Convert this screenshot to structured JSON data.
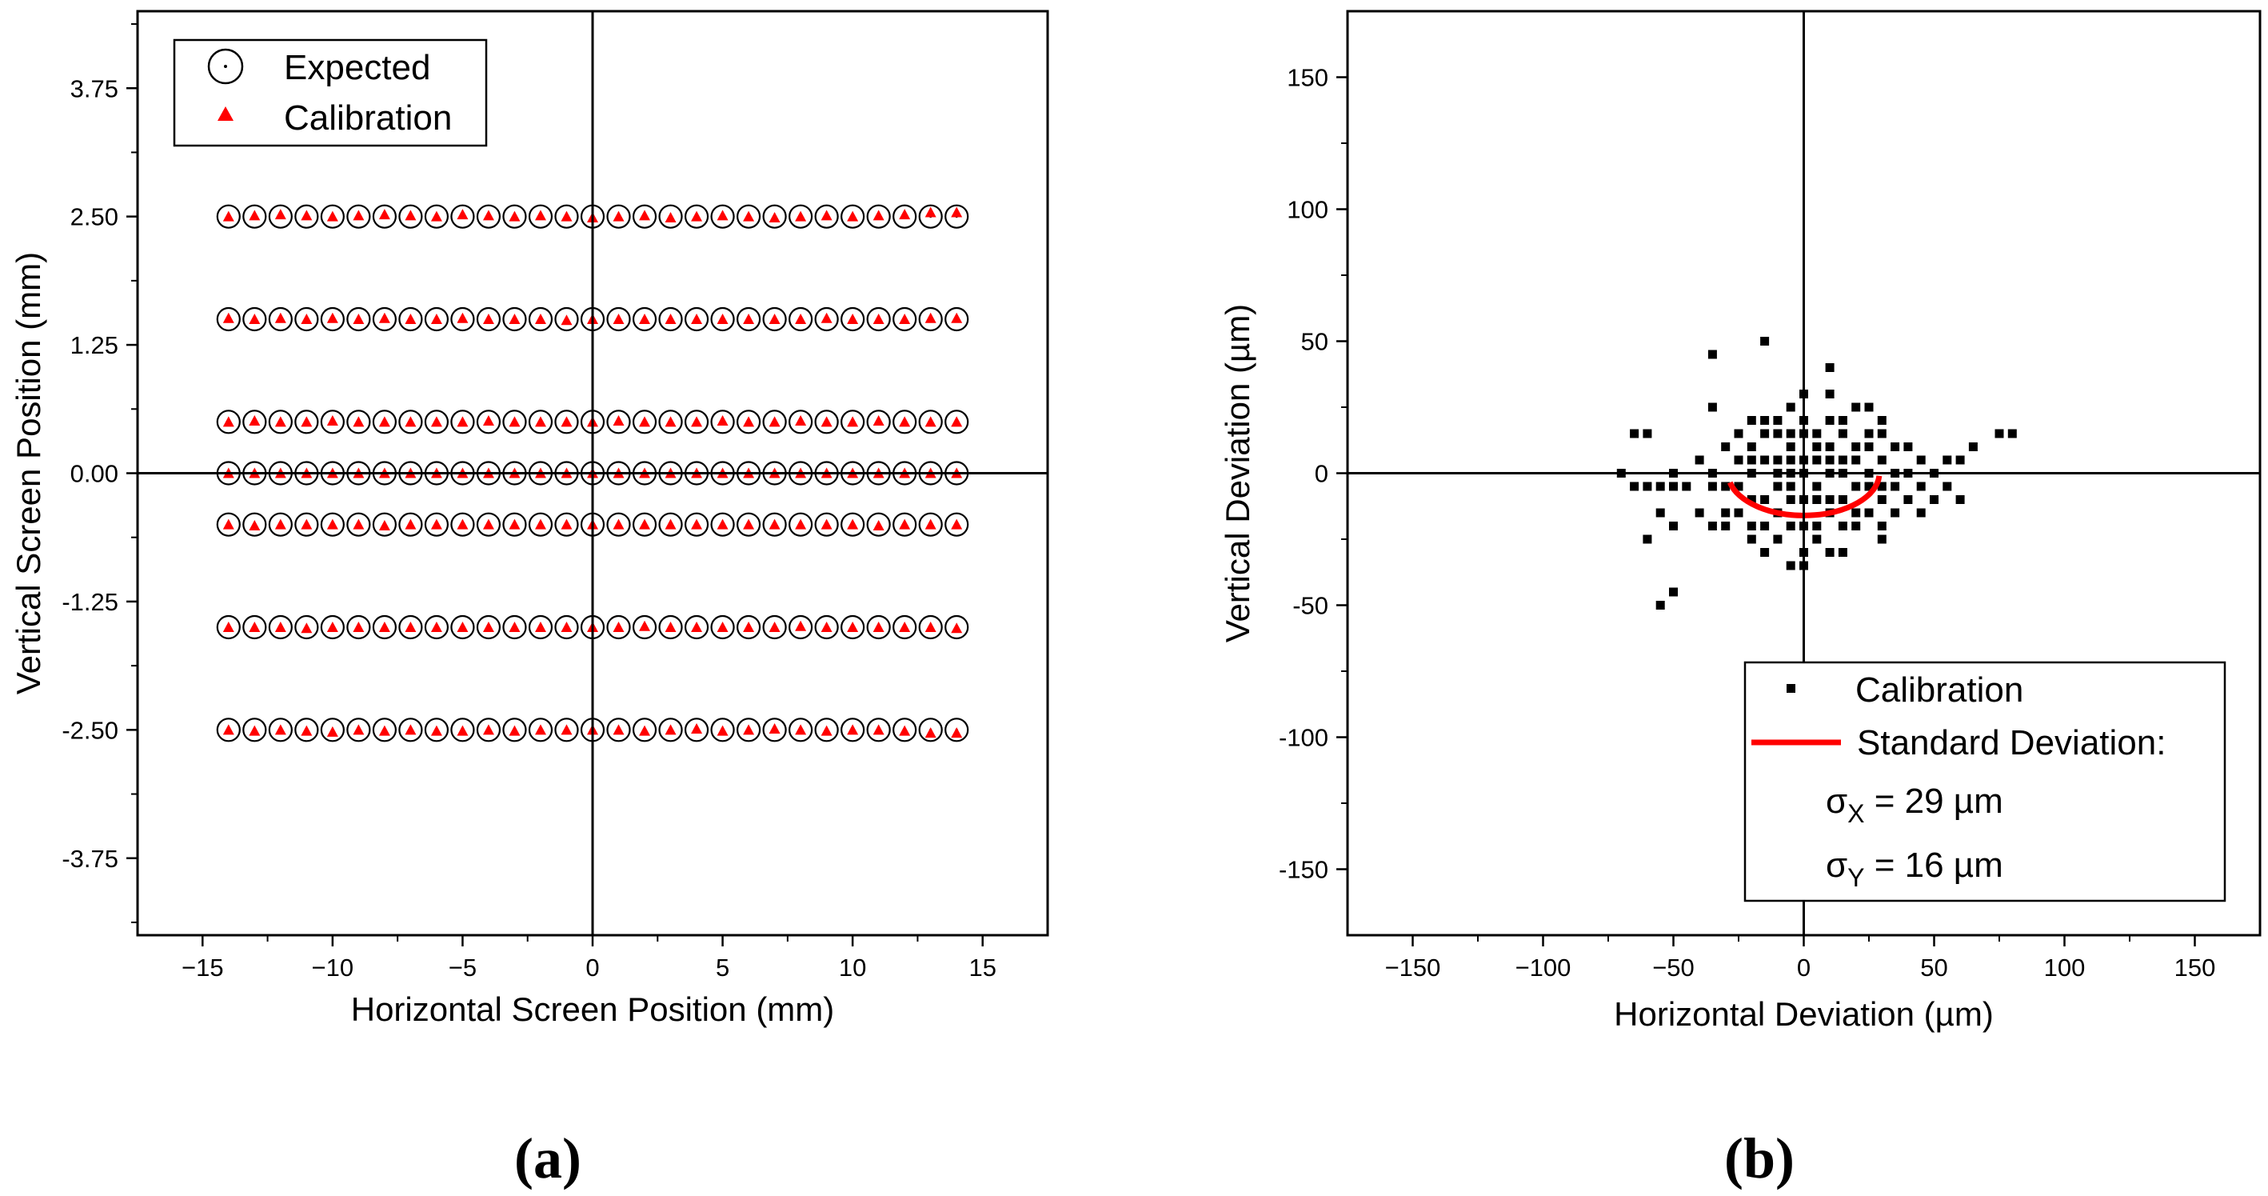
{
  "panel_labels": {
    "a": "a",
    "b": "b"
  },
  "chart_data": [
    {
      "type": "scatter",
      "panel": "a",
      "xlabel": "Horizontal Screen Position (mm)",
      "ylabel": "Vertical Screen Position (mm)",
      "xlim": [
        -17.5,
        17.5
      ],
      "ylim": [
        -4.5,
        4.5
      ],
      "xticks": [
        -15,
        -10,
        -5,
        0,
        5,
        10,
        15
      ],
      "xtick_labels": [
        "−15",
        "−10",
        "−5",
        "0",
        "5",
        "10",
        "15"
      ],
      "yticks": [
        3.75,
        2.5,
        1.25,
        0,
        -1.25,
        -2.5,
        -3.75
      ],
      "ytick_labels": [
        "3.75",
        "2.50",
        "1.25",
        "0.00",
        "-1.25",
        "-2.50",
        "-3.75"
      ],
      "grid": false,
      "legend_position": "top-left",
      "x_positions": [
        -14,
        -13,
        -12,
        -11,
        -10,
        -9,
        -8,
        -7,
        -6,
        -5,
        -4,
        -3,
        -2,
        -1,
        0,
        1,
        2,
        3,
        4,
        5,
        6,
        7,
        8,
        9,
        10,
        11,
        12,
        13,
        14
      ],
      "row_y": [
        2.5,
        1.5,
        0.5,
        0,
        -0.5,
        -1.5,
        -2.5
      ],
      "series": [
        {
          "name": "Expected",
          "marker": "open-circle-with-dot",
          "color": "#000000"
        },
        {
          "name": "Calibration",
          "marker": "triangle",
          "color": "#ff0000"
        }
      ],
      "calibration_offsets": [
        [
          0.0,
          0.01,
          0.02,
          0.01,
          0.0,
          0.01,
          0.02,
          0.01,
          0.0,
          0.02,
          0.01,
          0.0,
          0.01,
          0.0,
          -0.01,
          0.0,
          0.01,
          -0.01,
          0.0,
          0.01,
          0.0,
          -0.01,
          0.0,
          0.01,
          0.0,
          0.01,
          0.02,
          0.04,
          0.04
        ],
        [
          0.01,
          0.0,
          0.01,
          0.0,
          0.01,
          0.0,
          0.01,
          0.0,
          0.0,
          0.01,
          0.0,
          0.0,
          0.0,
          -0.01,
          0.0,
          0.0,
          0.0,
          0.0,
          0.0,
          0.0,
          0.0,
          0.0,
          0.0,
          0.01,
          0.0,
          0.0,
          0.0,
          0.01,
          0.01
        ],
        [
          0.0,
          0.01,
          0.0,
          0.0,
          0.01,
          0.0,
          0.0,
          0.0,
          0.0,
          0.0,
          0.01,
          0.0,
          0.0,
          0.0,
          0.0,
          0.01,
          0.0,
          0.0,
          0.0,
          0.01,
          0.0,
          0.0,
          0.01,
          0.0,
          0.0,
          0.01,
          0.0,
          0.0,
          0.0
        ],
        [
          0.0,
          0.0,
          0.0,
          0.0,
          0.0,
          0.0,
          0.0,
          0.0,
          0.0,
          0.0,
          0.0,
          0.0,
          0.0,
          0.0,
          0.0,
          0.0,
          0.0,
          0.0,
          0.0,
          0.0,
          0.0,
          0.0,
          0.0,
          0.0,
          0.0,
          0.0,
          0.0,
          0.0,
          0.0
        ],
        [
          0.0,
          -0.01,
          0.0,
          0.0,
          0.0,
          0.0,
          -0.01,
          0.0,
          0.0,
          0.0,
          0.0,
          0.0,
          0.0,
          0.0,
          0.0,
          0.0,
          0.0,
          0.0,
          0.0,
          0.0,
          0.0,
          0.0,
          0.0,
          0.0,
          0.0,
          -0.01,
          0.0,
          0.0,
          0.0
        ],
        [
          0.0,
          0.0,
          0.0,
          -0.01,
          0.0,
          0.0,
          0.0,
          0.0,
          0.0,
          0.0,
          0.0,
          0.0,
          0.0,
          0.0,
          0.0,
          0.0,
          0.01,
          0.0,
          0.0,
          0.0,
          0.0,
          0.0,
          0.01,
          0.0,
          0.0,
          0.0,
          0.0,
          0.0,
          -0.01
        ],
        [
          0.0,
          -0.01,
          0.0,
          -0.01,
          -0.02,
          0.0,
          -0.01,
          0.0,
          -0.01,
          -0.01,
          0.0,
          -0.01,
          0.0,
          0.0,
          0.0,
          0.0,
          -0.01,
          0.0,
          0.01,
          -0.01,
          0.0,
          0.01,
          0.0,
          -0.01,
          0.0,
          0.0,
          -0.01,
          -0.03,
          -0.03
        ]
      ]
    },
    {
      "type": "scatter",
      "panel": "b",
      "xlabel": "Horizontal Deviation (µm)",
      "ylabel": "Vertical Deviation (µm)",
      "xlim": [
        -175,
        175
      ],
      "ylim": [
        -175,
        175
      ],
      "xticks": [
        -150,
        -100,
        -50,
        0,
        50,
        100,
        150
      ],
      "xtick_labels": [
        "−150",
        "−100",
        "−50",
        "0",
        "50",
        "100",
        "150"
      ],
      "yticks": [
        150,
        100,
        50,
        0,
        -50,
        -100,
        -150
      ],
      "ytick_labels": [
        "150",
        "100",
        "50",
        "0",
        "-50",
        "-100",
        "-150"
      ],
      "grid": false,
      "legend_position": "bottom-right",
      "series": [
        {
          "name": "Calibration",
          "marker": "square",
          "color": "#000000",
          "points": [
            [
              -70,
              0
            ],
            [
              -65,
              15
            ],
            [
              -60,
              15
            ],
            [
              -65,
              -5
            ],
            [
              -60,
              -5
            ],
            [
              -55,
              -5
            ],
            [
              -50,
              -5
            ],
            [
              -50,
              0
            ],
            [
              -45,
              -5
            ],
            [
              -55,
              -15
            ],
            [
              -60,
              -25
            ],
            [
              -50,
              -20
            ],
            [
              -55,
              -50
            ],
            [
              -50,
              -45
            ],
            [
              -40,
              5
            ],
            [
              -35,
              0
            ],
            [
              -35,
              25
            ],
            [
              -35,
              45
            ],
            [
              -35,
              -5
            ],
            [
              -35,
              -20
            ],
            [
              -30,
              10
            ],
            [
              -30,
              -5
            ],
            [
              -30,
              -15
            ],
            [
              -30,
              -20
            ],
            [
              -40,
              -15
            ],
            [
              -25,
              15
            ],
            [
              -25,
              5
            ],
            [
              -25,
              -5
            ],
            [
              -25,
              -15
            ],
            [
              -20,
              20
            ],
            [
              -20,
              10
            ],
            [
              -20,
              5
            ],
            [
              -20,
              0
            ],
            [
              -20,
              -10
            ],
            [
              -20,
              -20
            ],
            [
              -20,
              -25
            ],
            [
              -15,
              50
            ],
            [
              -15,
              20
            ],
            [
              -15,
              15
            ],
            [
              -15,
              5
            ],
            [
              -15,
              -10
            ],
            [
              -15,
              -20
            ],
            [
              -15,
              -30
            ],
            [
              -10,
              20
            ],
            [
              -10,
              15
            ],
            [
              -10,
              5
            ],
            [
              -10,
              0
            ],
            [
              -10,
              -5
            ],
            [
              -10,
              -15
            ],
            [
              -10,
              -25
            ],
            [
              -5,
              25
            ],
            [
              -5,
              15
            ],
            [
              -5,
              10
            ],
            [
              -5,
              5
            ],
            [
              -5,
              0
            ],
            [
              -5,
              -5
            ],
            [
              -5,
              -10
            ],
            [
              -5,
              -20
            ],
            [
              0,
              30
            ],
            [
              0,
              20
            ],
            [
              0,
              15
            ],
            [
              0,
              5
            ],
            [
              0,
              0
            ],
            [
              0,
              -10
            ],
            [
              0,
              -20
            ],
            [
              0,
              -35
            ],
            [
              -5,
              -35
            ],
            [
              0,
              -30
            ],
            [
              5,
              15
            ],
            [
              5,
              10
            ],
            [
              5,
              5
            ],
            [
              5,
              -5
            ],
            [
              5,
              -10
            ],
            [
              5,
              -20
            ],
            [
              5,
              -25
            ],
            [
              10,
              40
            ],
            [
              10,
              30
            ],
            [
              10,
              20
            ],
            [
              10,
              10
            ],
            [
              10,
              5
            ],
            [
              10,
              0
            ],
            [
              10,
              -10
            ],
            [
              10,
              -15
            ],
            [
              10,
              -30
            ],
            [
              15,
              20
            ],
            [
              15,
              15
            ],
            [
              15,
              5
            ],
            [
              15,
              0
            ],
            [
              15,
              -10
            ],
            [
              15,
              -20
            ],
            [
              15,
              -30
            ],
            [
              20,
              25
            ],
            [
              20,
              10
            ],
            [
              20,
              5
            ],
            [
              20,
              -5
            ],
            [
              20,
              -15
            ],
            [
              20,
              -20
            ],
            [
              25,
              25
            ],
            [
              25,
              15
            ],
            [
              25,
              10
            ],
            [
              25,
              0
            ],
            [
              25,
              -5
            ],
            [
              25,
              -15
            ],
            [
              30,
              20
            ],
            [
              30,
              15
            ],
            [
              30,
              5
            ],
            [
              30,
              -5
            ],
            [
              30,
              -10
            ],
            [
              30,
              -20
            ],
            [
              30,
              -25
            ],
            [
              35,
              10
            ],
            [
              35,
              0
            ],
            [
              35,
              -5
            ],
            [
              35,
              -15
            ],
            [
              40,
              10
            ],
            [
              40,
              0
            ],
            [
              40,
              -10
            ],
            [
              45,
              5
            ],
            [
              45,
              -5
            ],
            [
              45,
              -15
            ],
            [
              50,
              0
            ],
            [
              50,
              -10
            ],
            [
              55,
              5
            ],
            [
              55,
              -5
            ],
            [
              60,
              5
            ],
            [
              60,
              -10
            ],
            [
              65,
              10
            ],
            [
              75,
              15
            ],
            [
              80,
              15
            ]
          ]
        },
        {
          "name": "Standard Deviation:",
          "type": "ellipse-arc",
          "color": "#ff0000",
          "sigma_x": 29,
          "sigma_y": 16
        }
      ],
      "annotations": {
        "sigma_x_text": "σ",
        "sigma_x_sub": "X",
        "sigma_x_value": " = 29 µm",
        "sigma_y_text": "σ",
        "sigma_y_sub": "Y",
        "sigma_y_value": " = 16 µm"
      }
    }
  ]
}
